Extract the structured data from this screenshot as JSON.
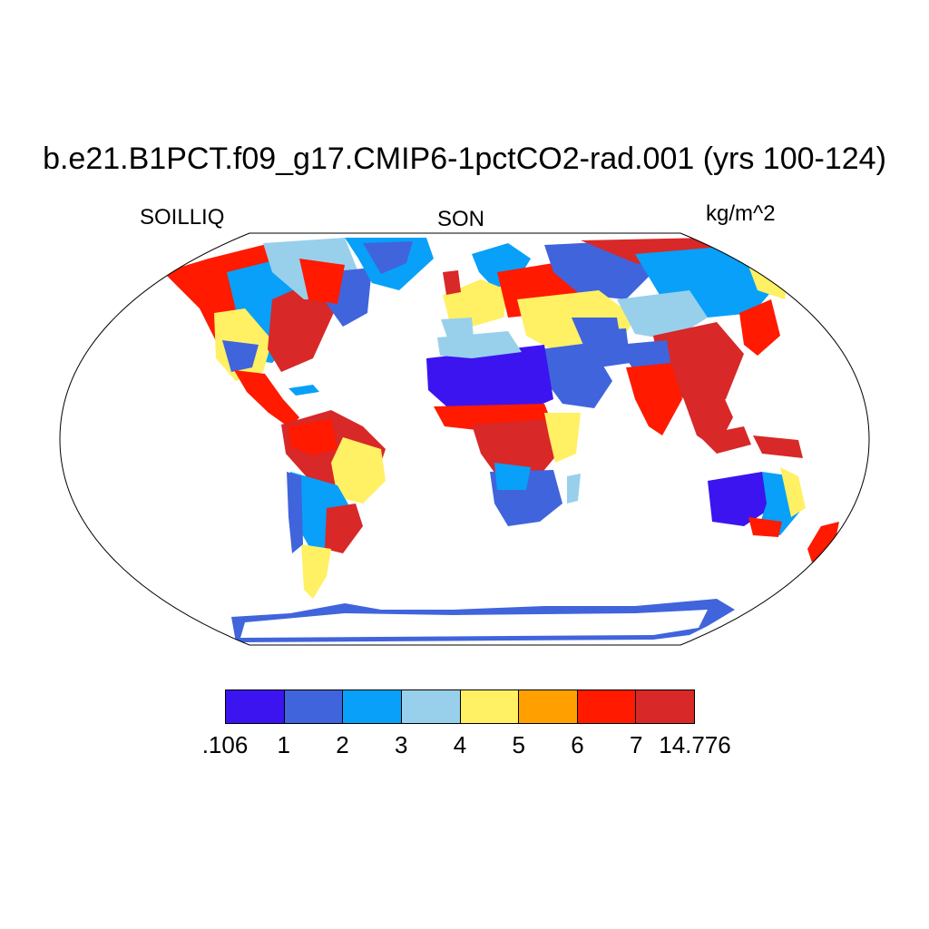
{
  "title": "b.e21.B1PCT.f09_g17.CMIP6-1pctCO2-rad.001 (yrs 100-124)",
  "left_label": "SOILLIQ",
  "center_label": "SON",
  "right_label": "kg/m^2",
  "colorbar": {
    "colors": [
      "#3c14f0",
      "#4064dc",
      "#08a0f8",
      "#98d0ec",
      "#fff064",
      "#ffa000",
      "#ff1a00",
      "#d82828"
    ],
    "labels": [
      ".106",
      "1",
      "2",
      "3",
      "4",
      "5",
      "6",
      "7",
      "14.776"
    ]
  },
  "map": {
    "projection": "Robinson",
    "background": "#ffffff",
    "ocean_fill": "#ffffff"
  }
}
